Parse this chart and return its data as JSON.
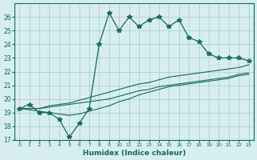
{
  "x": [
    0,
    1,
    2,
    3,
    4,
    5,
    6,
    7,
    8,
    9,
    10,
    11,
    12,
    13,
    14,
    15,
    16,
    17,
    18,
    19,
    20,
    21,
    22,
    23
  ],
  "y_main": [
    19.3,
    19.6,
    19.0,
    19.0,
    18.5,
    17.2,
    18.2,
    19.3,
    24.0,
    26.3,
    25.0,
    26.0,
    25.3,
    25.8,
    26.0,
    25.3,
    25.8,
    24.5,
    24.2,
    23.3,
    23.0,
    23.0,
    23.0,
    22.8
  ],
  "y_line1": [
    19.3,
    19.3,
    19.3,
    19.5,
    19.6,
    19.7,
    19.9,
    20.1,
    20.3,
    20.5,
    20.7,
    20.9,
    21.1,
    21.2,
    21.4,
    21.6,
    21.7,
    21.8,
    21.9,
    22.0,
    22.1,
    22.2,
    22.3,
    22.5
  ],
  "y_line2": [
    19.3,
    19.3,
    19.3,
    19.4,
    19.5,
    19.6,
    19.7,
    19.8,
    19.9,
    20.0,
    20.2,
    20.4,
    20.6,
    20.7,
    20.9,
    21.0,
    21.1,
    21.2,
    21.3,
    21.4,
    21.5,
    21.6,
    21.8,
    21.9
  ],
  "y_line3": [
    19.3,
    19.2,
    19.1,
    19.0,
    18.9,
    18.8,
    18.9,
    19.1,
    19.3,
    19.5,
    19.8,
    20.0,
    20.3,
    20.5,
    20.7,
    20.9,
    21.0,
    21.1,
    21.2,
    21.3,
    21.4,
    21.5,
    21.7,
    21.8
  ],
  "color_main": "#1a6b5a",
  "color_lines": "#1a6b5a",
  "bg_color": "#d8eeee",
  "grid_color": "#b0d0d0",
  "xlabel": "Humidex (Indice chaleur)",
  "ylabel_ticks": [
    17,
    18,
    19,
    20,
    21,
    22,
    23,
    24,
    25,
    26
  ],
  "ylim": [
    17,
    27
  ],
  "xlim": [
    -0.5,
    23.5
  ],
  "xtick_labels": [
    "0",
    "1",
    "2",
    "3",
    "4",
    "5",
    "6",
    "7",
    "8",
    "9",
    "10",
    "11",
    "12",
    "13",
    "14",
    "15",
    "16",
    "17",
    "18",
    "19",
    "20",
    "21",
    "22",
    "23"
  ]
}
